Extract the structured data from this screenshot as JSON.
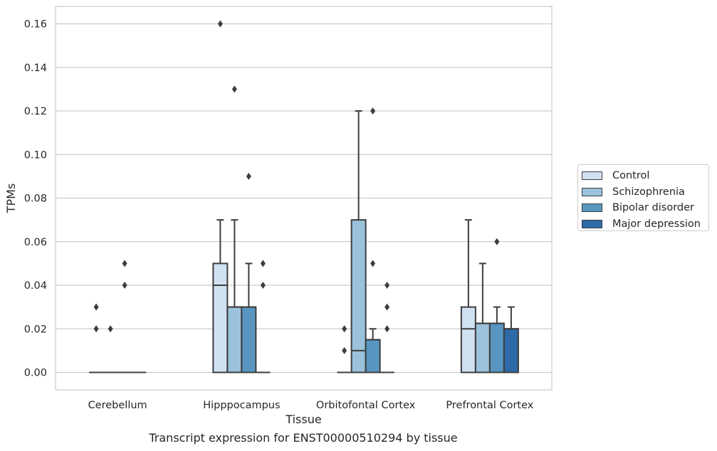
{
  "chart_data": {
    "type": "box",
    "title": "",
    "xlabel": "Tissue",
    "ylabel": "TPMs",
    "ylim": [
      -0.008,
      0.168
    ],
    "yticks": [
      0.0,
      0.02,
      0.04,
      0.06,
      0.08,
      0.1,
      0.12,
      0.14,
      0.16
    ],
    "ytick_labels": [
      "0.00",
      "0.02",
      "0.04",
      "0.06",
      "0.08",
      "0.10",
      "0.12",
      "0.14",
      "0.16"
    ],
    "grid": true,
    "legend_position": "right-center",
    "categories": [
      "Cerebellum",
      "Hipppocampus",
      "Orbitofontal Cortex",
      "Prefrontal Cortex"
    ],
    "series": [
      {
        "name": "Control",
        "color": "#d0e1f2",
        "boxes": [
          {
            "min": 0,
            "q1": 0,
            "median": 0,
            "q3": 0,
            "max": 0,
            "outliers": [
              0.03,
              0.02
            ]
          },
          {
            "min": 0,
            "q1": 0,
            "median": 0.04,
            "q3": 0.05,
            "max": 0.07,
            "outliers": [
              0.16
            ]
          },
          {
            "min": 0,
            "q1": 0,
            "median": 0,
            "q3": 0,
            "max": 0,
            "outliers": [
              0.02,
              0.01
            ]
          },
          {
            "min": 0,
            "q1": 0,
            "median": 0.02,
            "q3": 0.03,
            "max": 0.07,
            "outliers": []
          }
        ]
      },
      {
        "name": "Schizophrenia",
        "color": "#9ac3db",
        "boxes": [
          {
            "min": 0,
            "q1": 0,
            "median": 0,
            "q3": 0,
            "max": 0,
            "outliers": [
              0.02
            ]
          },
          {
            "min": 0,
            "q1": 0,
            "median": 0.03,
            "q3": 0.03,
            "max": 0.07,
            "outliers": [
              0.13
            ]
          },
          {
            "min": 0,
            "q1": 0,
            "median": 0.01,
            "q3": 0.07,
            "max": 0.12,
            "outliers": []
          },
          {
            "min": 0,
            "q1": 0,
            "median": 0.0225,
            "q3": 0.0225,
            "max": 0.05,
            "outliers": []
          }
        ]
      },
      {
        "name": "Bipolar disorder",
        "color": "#5896c1",
        "boxes": [
          {
            "min": 0,
            "q1": 0,
            "median": 0,
            "q3": 0,
            "max": 0,
            "outliers": [
              0.05,
              0.04
            ]
          },
          {
            "min": 0,
            "q1": 0,
            "median": 0.03,
            "q3": 0.03,
            "max": 0.05,
            "outliers": [
              0.09
            ]
          },
          {
            "min": 0,
            "q1": 0,
            "median": 0.015,
            "q3": 0.015,
            "max": 0.02,
            "outliers": [
              0.12,
              0.05
            ]
          },
          {
            "min": 0,
            "q1": 0,
            "median": 0.0225,
            "q3": 0.0225,
            "max": 0.03,
            "outliers": [
              0.06
            ]
          }
        ]
      },
      {
        "name": "Major depression",
        "color": "#2d6aa7",
        "boxes": [
          {
            "min": 0,
            "q1": 0,
            "median": 0,
            "q3": 0,
            "max": 0,
            "outliers": []
          },
          {
            "min": 0,
            "q1": 0,
            "median": 0,
            "q3": 0,
            "max": 0,
            "outliers": [
              0.05,
              0.04
            ]
          },
          {
            "min": 0,
            "q1": 0,
            "median": 0,
            "q3": 0,
            "max": 0,
            "outliers": [
              0.04,
              0.03,
              0.02
            ]
          },
          {
            "min": 0,
            "q1": 0,
            "median": 0.02,
            "q3": 0.02,
            "max": 0.03,
            "outliers": []
          }
        ]
      }
    ]
  },
  "legend": {
    "items": [
      {
        "label": "Control",
        "color": "#d0e1f2"
      },
      {
        "label": "Schizophrenia",
        "color": "#9ac3db"
      },
      {
        "label": "Bipolar disorder",
        "color": "#5896c1"
      },
      {
        "label": "Major depression",
        "color": "#2d6aa7"
      }
    ]
  },
  "caption": "Transcript expression for ENST00000510294 by tissue"
}
